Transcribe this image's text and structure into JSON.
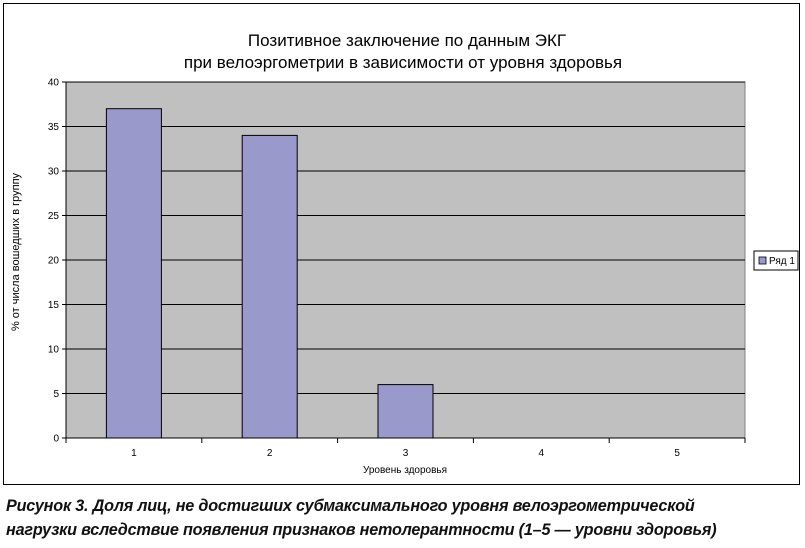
{
  "chart_data": {
    "type": "bar",
    "title_lines": [
      "Позитивное заключение по данным ЭКГ",
      "при велоэргометрии в зависимости от уровня здоровья"
    ],
    "xlabel": "Уровень здоровья",
    "ylabel": "% от числа вошедших в группу",
    "categories": [
      "1",
      "2",
      "3",
      "4",
      "5"
    ],
    "series": [
      {
        "name": "Ряд 1",
        "values": [
          37,
          34,
          6,
          0,
          0
        ],
        "color": "#9999cc"
      }
    ],
    "ylim": [
      0,
      40
    ],
    "yticks": [
      0,
      5,
      10,
      15,
      20,
      25,
      30,
      35,
      40
    ],
    "plot_background": "#c0c0c0",
    "grid": true,
    "legend_position": "right"
  },
  "caption": {
    "line1": "Рисунок 3. Доля лиц, не достигших субмаксимального уровня велоэргометрической",
    "line2": "нагрузки вследствие появления признаков нетолерантности (1–5 — уровни здоровья)"
  }
}
